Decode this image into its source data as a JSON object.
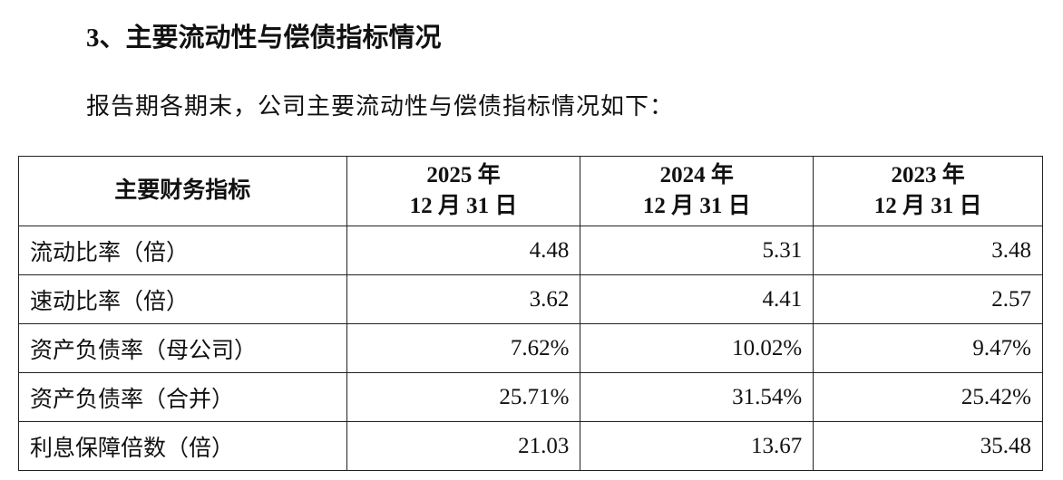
{
  "heading": "3、主要流动性与偿债指标情况",
  "intro": "报告期各期末，公司主要流动性与偿债指标情况如下：",
  "table": {
    "header": [
      [
        "主要财务指标"
      ],
      [
        "2025 年",
        "12 月 31 日"
      ],
      [
        "2024 年",
        "12 月 31 日"
      ],
      [
        "2023 年",
        "12 月 31 日"
      ]
    ],
    "rows": [
      [
        "流动比率（倍）",
        "4.48",
        "5.31",
        "3.48"
      ],
      [
        "速动比率（倍）",
        "3.62",
        "4.41",
        "2.57"
      ],
      [
        "资产负债率（母公司）",
        "7.62%",
        "10.02%",
        "9.47%"
      ],
      [
        "资产负债率（合并）",
        "25.71%",
        "31.54%",
        "25.42%"
      ],
      [
        "利息保障倍数（倍）",
        "21.03",
        "13.67",
        "35.48"
      ]
    ]
  }
}
